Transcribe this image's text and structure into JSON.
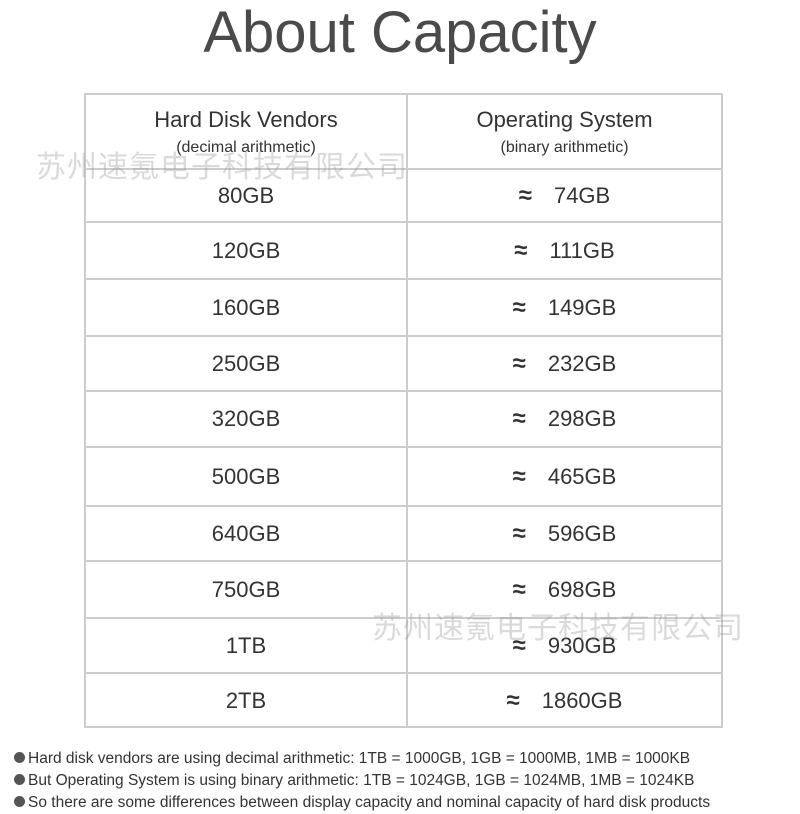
{
  "title": "About Capacity",
  "header": {
    "vendors": "Hard Disk Vendors",
    "vendors_sub": "(decimal arithmetic)",
    "os": "Operating System",
    "os_sub": "(binary arithmetic)"
  },
  "approx_symbol": "≈",
  "rows": [
    {
      "vendor": "80GB",
      "os": "74GB"
    },
    {
      "vendor": "120GB",
      "os": "111GB"
    },
    {
      "vendor": "160GB",
      "os": "149GB"
    },
    {
      "vendor": "250GB",
      "os": "232GB"
    },
    {
      "vendor": "320GB",
      "os": "298GB"
    },
    {
      "vendor": "500GB",
      "os": "465GB"
    },
    {
      "vendor": "640GB",
      "os": "596GB"
    },
    {
      "vendor": "750GB",
      "os": "698GB"
    },
    {
      "vendor": "1TB",
      "os": "930GB"
    },
    {
      "vendor": "2TB",
      "os": "1860GB"
    }
  ],
  "watermark": "苏州速氪电子科技有限公司",
  "notes": [
    "Hard disk vendors are using decimal arithmetic: 1TB = 1000GB, 1GB = 1000MB, 1MB = 1000KB",
    "But Operating System is using binary arithmetic: 1TB = 1024GB, 1GB = 1024MB, 1MB = 1024KB",
    "So there are some differences between display capacity and nominal capacity of hard disk products"
  ]
}
